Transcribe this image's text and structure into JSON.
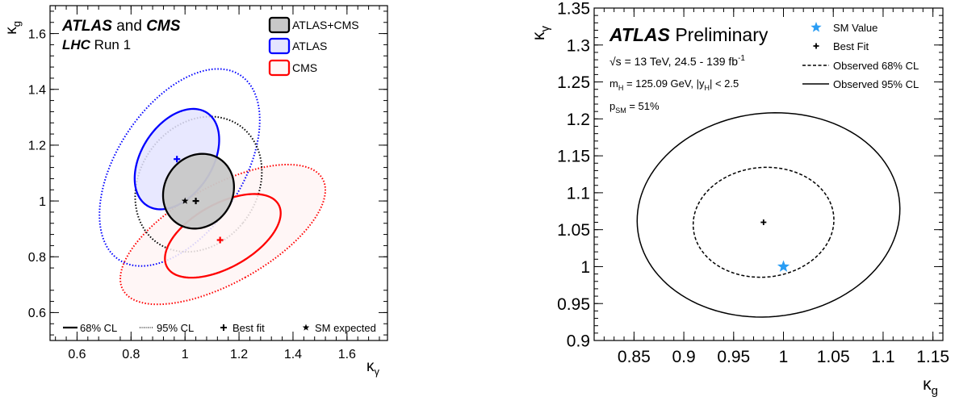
{
  "chart_data": [
    {
      "type": "contour",
      "xlabel": "κ",
      "xlabel_sub": "γ",
      "ylabel": "κ",
      "ylabel_sub": "g",
      "xlim": [
        0.5,
        1.75
      ],
      "ylim": [
        0.5,
        1.7
      ],
      "xticks": [
        0.6,
        0.8,
        1,
        1.2,
        1.4,
        1.6
      ],
      "xtick_labels": [
        "0.6",
        "0.8",
        "1",
        "1.2",
        "1.4",
        "1.6"
      ],
      "yticks": [
        0.6,
        0.8,
        1,
        1.2,
        1.4,
        1.6
      ],
      "ytick_labels": [
        "0.6",
        "0.8",
        "1",
        "1.2",
        "1.4",
        "1.6"
      ],
      "annotations": {
        "line1": {
          "bold_a": "ATLAS",
          "mid": " and ",
          "bold_b": "CMS"
        },
        "line2": {
          "bold": "LHC",
          "rest": " Run 1"
        }
      },
      "legend_top": [
        "ATLAS+CMS",
        "ATLAS",
        "CMS"
      ],
      "legend_bottom": [
        "68% CL",
        "95% CL",
        "Best fit",
        "SM expected"
      ],
      "series": [
        {
          "name": "ATLAS+CMS",
          "color": "#000000",
          "fill": "#c8c8c8",
          "best_fit": [
            1.04,
            1.0
          ],
          "cl68": {
            "center": [
              1.05,
              1.035
            ],
            "semi_axes": [
              0.125,
              0.14
            ],
            "angle_deg": -40
          },
          "cl95": {
            "center": [
              1.05,
              1.06
            ],
            "semi_axes": [
              0.215,
              0.26
            ],
            "angle_deg": -40
          }
        },
        {
          "name": "ATLAS",
          "color": "#0000ff",
          "fill": "#e4e4ff",
          "best_fit": [
            0.97,
            1.15
          ],
          "cl68": {
            "center": [
              0.97,
              1.15
            ],
            "semi_axes": [
              0.13,
              0.2
            ],
            "angle_deg": -35
          },
          "cl95": {
            "center": [
              0.98,
              1.12
            ],
            "semi_axes": [
              0.23,
              0.4
            ],
            "angle_deg": -35
          }
        },
        {
          "name": "CMS",
          "color": "#ff0000",
          "fill": "#fff6f6",
          "best_fit": [
            1.13,
            0.86
          ],
          "cl68": {
            "center": [
              1.14,
              0.875
            ],
            "semi_axes": [
              0.115,
              0.235
            ],
            "angle_deg": -62
          },
          "cl95": {
            "center": [
              1.14,
              0.88
            ],
            "semi_axes": [
              0.175,
              0.42
            ],
            "angle_deg": -62
          }
        }
      ],
      "sm_expected": [
        1.0,
        1.0
      ]
    },
    {
      "type": "contour",
      "xlabel": "κ",
      "xlabel_sub": "g",
      "ylabel": "κ",
      "ylabel_sub": "γ",
      "xlim": [
        0.81,
        1.16
      ],
      "ylim": [
        0.9,
        1.35
      ],
      "xticks": [
        0.85,
        0.9,
        0.95,
        1,
        1.05,
        1.1,
        1.15
      ],
      "xtick_labels": [
        "0.85",
        "0.9",
        "0.95",
        "1",
        "1.05",
        "1.1",
        "1.15"
      ],
      "yticks": [
        0.9,
        0.95,
        1,
        1.05,
        1.1,
        1.15,
        1.2,
        1.25,
        1.3,
        1.35
      ],
      "ytick_labels": [
        "0.9",
        "0.95",
        "1",
        "1.05",
        "1.1",
        "1.15",
        "1.2",
        "1.25",
        "1.3",
        "1.35"
      ],
      "annotations": {
        "title": {
          "bold": "ATLAS",
          "rest": " Preliminary"
        },
        "energy": "√s = 13 TeV, 24.5 - 139 fb",
        "energy_sup": "-1",
        "mass": "m",
        "mass_sub": "H",
        "mass_rest": " = 125.09 GeV, |y",
        "mass_sub2": "H",
        "mass_tail": "| < 2.5",
        "psm": "p",
        "psm_sub": "SM",
        "psm_rest": " = 51%"
      },
      "legend": [
        "SM Value",
        "Best Fit",
        "Observed 68% CL",
        "Observed 95% CL"
      ],
      "best_fit": [
        0.98,
        1.06
      ],
      "sm_value": [
        1.0,
        1.0
      ],
      "sm_color": "#2a9df4",
      "cl68": {
        "center": [
          0.98,
          1.06
        ],
        "semi_axes": [
          0.07,
          0.075
        ],
        "angle_deg": -20
      },
      "cl95": {
        "center": [
          0.985,
          1.07
        ],
        "semi_axes": [
          0.13,
          0.14
        ],
        "angle_deg": -25
      }
    }
  ]
}
